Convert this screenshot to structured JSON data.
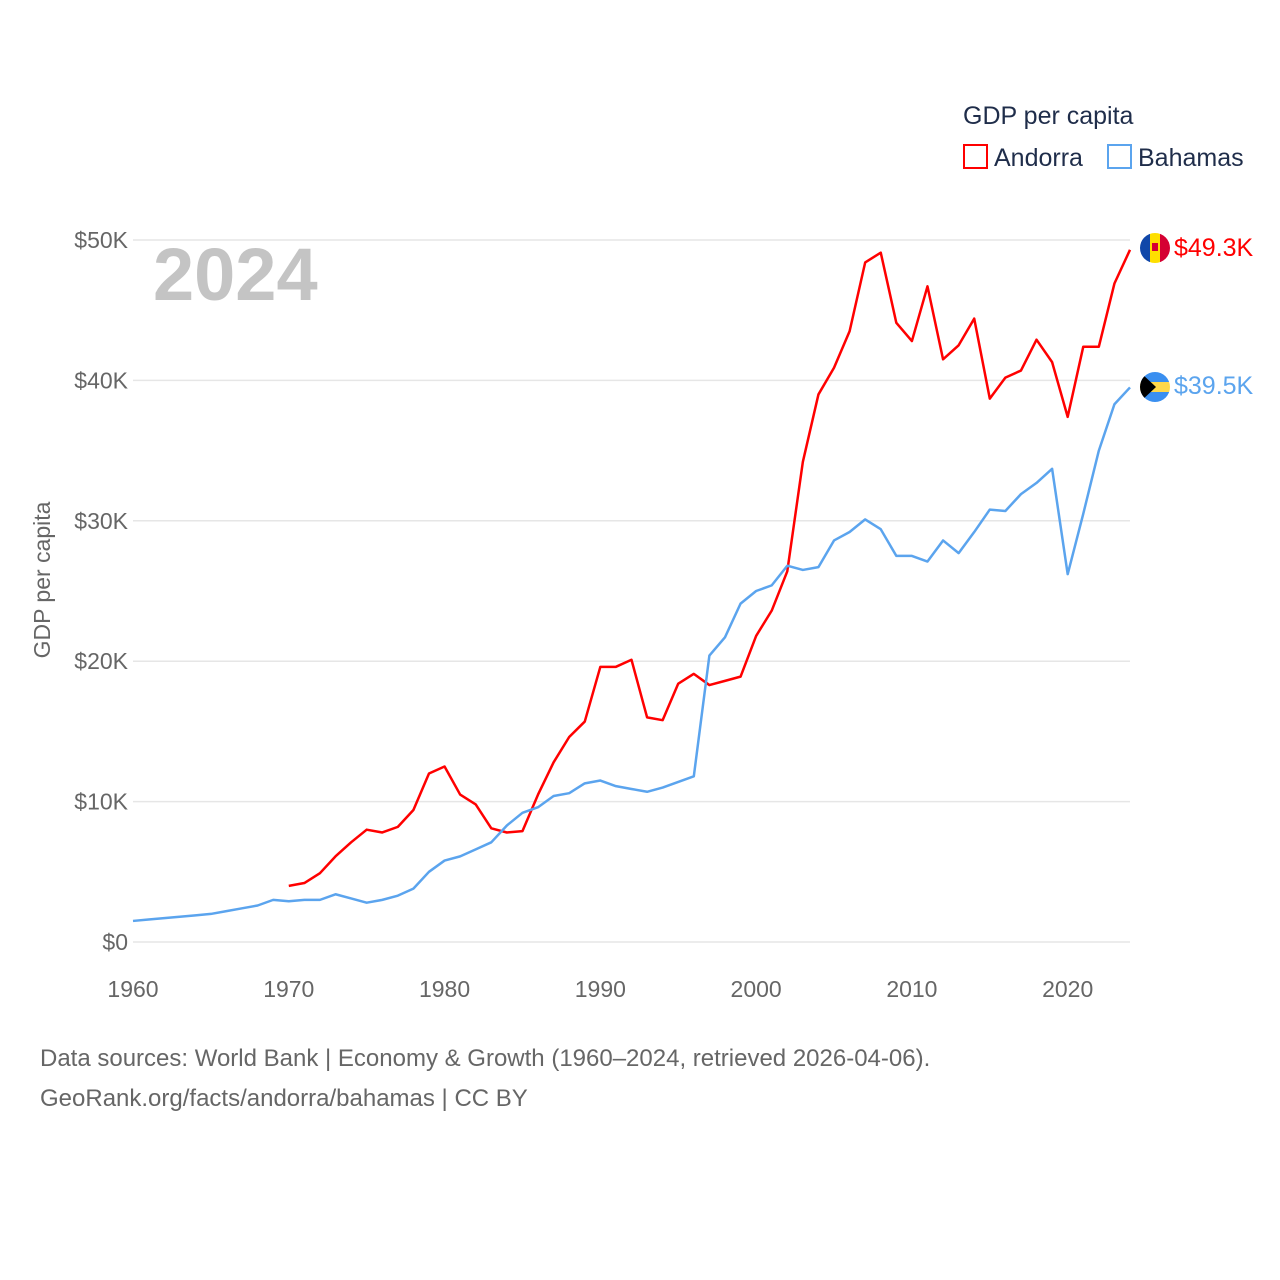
{
  "chart_data": {
    "type": "line",
    "legend_title": "GDP per capita",
    "ylabel": "GDP per capita",
    "xlabel": "",
    "year_watermark": "2024",
    "xlim": [
      1960,
      2024
    ],
    "ylim": [
      0,
      50000
    ],
    "x_ticks": [
      "1960",
      "1970",
      "1980",
      "1990",
      "2000",
      "2010",
      "2020"
    ],
    "x_tick_values": [
      1960,
      1970,
      1980,
      1990,
      2000,
      2010,
      2020
    ],
    "y_ticks": [
      "$0",
      "$10K",
      "$20K",
      "$30K",
      "$40K",
      "$50K"
    ],
    "y_tick_values": [
      0,
      10000,
      20000,
      30000,
      40000,
      50000
    ],
    "grid": true,
    "legend_position": "top-right",
    "series": [
      {
        "name": "Andorra",
        "color": "#ff0000",
        "end_label": "$49.3K",
        "start_year": 1970,
        "values": [
          4.0,
          4.2,
          4.9,
          6.1,
          7.1,
          8.0,
          7.8,
          8.2,
          9.4,
          12.0,
          12.5,
          10.5,
          9.8,
          8.1,
          7.8,
          7.9,
          10.5,
          12.8,
          14.6,
          15.7,
          19.6,
          19.6,
          20.1,
          16.0,
          15.8,
          18.4,
          19.1,
          18.3,
          18.6,
          18.9,
          21.8,
          23.6,
          26.4,
          34.2,
          39.0,
          40.9,
          43.5,
          48.4,
          49.1,
          44.1,
          42.8,
          46.7,
          41.5,
          42.5,
          44.4,
          38.7,
          40.2,
          40.7,
          42.9,
          41.3,
          37.4,
          42.4,
          42.4,
          46.9,
          49.3
        ]
      },
      {
        "name": "Bahamas",
        "color": "#5ba4ee",
        "end_label": "$39.5K",
        "start_year": 1960,
        "values": [
          1.5,
          1.6,
          1.7,
          1.8,
          1.9,
          2.0,
          2.2,
          2.4,
          2.6,
          3.0,
          2.9,
          3.0,
          3.0,
          3.4,
          3.1,
          2.8,
          3.0,
          3.3,
          3.8,
          5.0,
          5.8,
          6.1,
          6.6,
          7.1,
          8.3,
          9.2,
          9.6,
          10.4,
          10.6,
          11.3,
          11.5,
          11.1,
          10.9,
          10.7,
          11.0,
          11.4,
          11.8,
          20.4,
          21.7,
          24.1,
          25.0,
          25.4,
          26.8,
          26.5,
          26.7,
          28.6,
          29.2,
          30.1,
          29.4,
          27.5,
          27.5,
          27.1,
          28.6,
          27.7,
          29.2,
          30.8,
          30.7,
          31.9,
          32.7,
          33.7,
          26.2,
          30.5,
          35.0,
          38.3,
          39.5
        ]
      }
    ],
    "value_units": "thousands USD"
  },
  "footer": {
    "line1": "Data sources: World Bank | Economy & Growth (1960–2024, retrieved 2026-04-06).",
    "line2": "GeoRank.org/facts/andorra/bahamas | CC BY"
  }
}
